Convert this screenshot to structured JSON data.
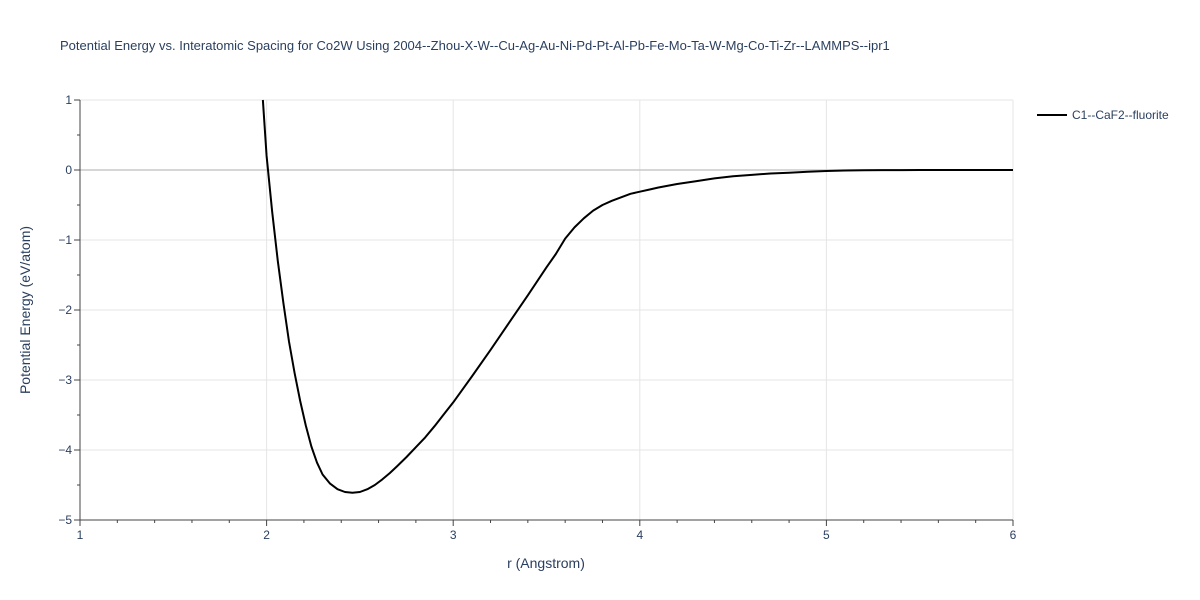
{
  "chart_data": {
    "type": "line",
    "title": "Potential Energy vs. Interatomic Spacing for Co2W Using 2004--Zhou-X-W--Cu-Ag-Au-Ni-Pd-Pt-Al-Pb-Fe-Mo-Ta-W-Mg-Co-Ti-Zr--LAMMPS--ipr1",
    "xlabel": "r (Angstrom)",
    "ylabel": "Potential Energy (eV/atom)",
    "xlim": [
      1,
      6
    ],
    "ylim": [
      -5,
      1
    ],
    "x_ticks": [
      1,
      2,
      3,
      4,
      5,
      6
    ],
    "y_ticks": [
      1,
      0,
      -1,
      -2,
      -3,
      -4,
      -5
    ],
    "x_tick_labels": [
      "1",
      "2",
      "3",
      "4",
      "5",
      "6"
    ],
    "y_tick_labels": [
      "1",
      "0",
      "−1",
      "−2",
      "−3",
      "−4",
      "−5"
    ],
    "grid": true,
    "legend_position": "top-right",
    "series": [
      {
        "name": "C1--CaF2--fluorite",
        "color": "#000000",
        "x": [
          1.98,
          2.0,
          2.03,
          2.06,
          2.09,
          2.12,
          2.15,
          2.18,
          2.21,
          2.24,
          2.27,
          2.3,
          2.34,
          2.38,
          2.42,
          2.46,
          2.5,
          2.54,
          2.58,
          2.62,
          2.66,
          2.7,
          2.75,
          2.8,
          2.85,
          2.9,
          2.95,
          3.0,
          3.1,
          3.2,
          3.3,
          3.4,
          3.5,
          3.55,
          3.6,
          3.65,
          3.7,
          3.75,
          3.8,
          3.85,
          3.9,
          3.95,
          4.0,
          4.05,
          4.1,
          4.2,
          4.3,
          4.4,
          4.5,
          4.6,
          4.7,
          4.8,
          4.9,
          5.0,
          5.1,
          5.2,
          5.3,
          5.4,
          5.5,
          5.6,
          5.8,
          6.0
        ],
        "y": [
          1.0,
          0.2,
          -0.6,
          -1.3,
          -1.9,
          -2.45,
          -2.9,
          -3.3,
          -3.65,
          -3.95,
          -4.18,
          -4.35,
          -4.48,
          -4.56,
          -4.6,
          -4.61,
          -4.6,
          -4.56,
          -4.5,
          -4.42,
          -4.33,
          -4.23,
          -4.1,
          -3.96,
          -3.82,
          -3.66,
          -3.49,
          -3.32,
          -2.95,
          -2.57,
          -2.18,
          -1.79,
          -1.39,
          -1.2,
          -0.98,
          -0.82,
          -0.69,
          -0.58,
          -0.5,
          -0.44,
          -0.39,
          -0.34,
          -0.31,
          -0.28,
          -0.25,
          -0.2,
          -0.16,
          -0.12,
          -0.09,
          -0.07,
          -0.05,
          -0.04,
          -0.025,
          -0.015,
          -0.008,
          -0.004,
          -0.002,
          -0.001,
          0.0,
          0.0,
          0.0,
          0.0
        ]
      }
    ]
  }
}
